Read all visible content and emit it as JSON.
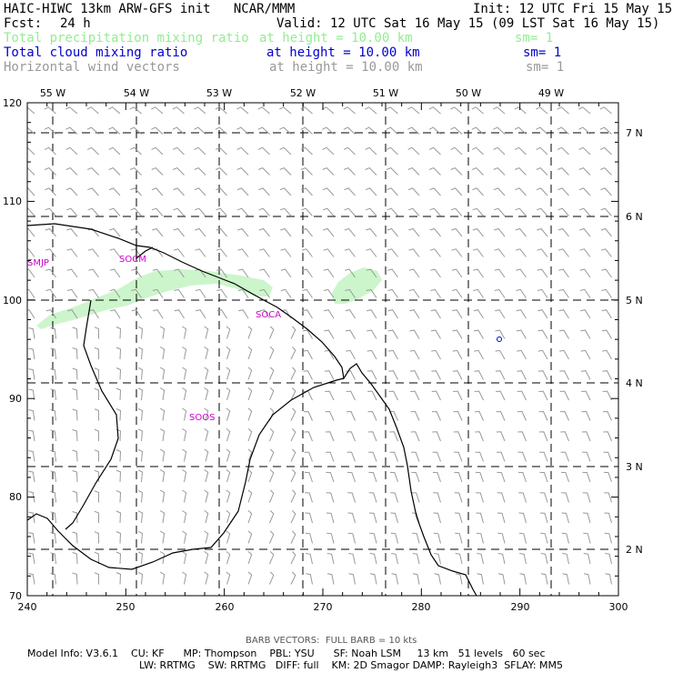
{
  "header": {
    "title_left": "HAIC-HIWC 13km ARW-GFS init   NCAR/MMM",
    "init": "Init: 12 UTC Fri 15 May 15",
    "fcst_label": "Fcst:",
    "fcst_value": "24 h",
    "valid": "Valid: 12 UTC Sat 16 May 15 (09 LST Sat 16 May 15)"
  },
  "fields": [
    {
      "name": "Total precipitation mixing ratio",
      "height": "at height = 10.00 km",
      "sm": "sm= 1",
      "color": "#90ee90"
    },
    {
      "name": "Total cloud mixing ratio",
      "height": "at height = 10.00 km",
      "sm": "sm= 1",
      "color": "#0000cc"
    },
    {
      "name": "Horizontal wind vectors",
      "height": "at height = 10.00 km",
      "sm": "sm= 1",
      "color": "#999999"
    }
  ],
  "map": {
    "x_ticks": [
      "240",
      "250",
      "260",
      "270",
      "280",
      "290",
      "300"
    ],
    "y_ticks": [
      "70",
      "80",
      "90",
      "100",
      "110",
      "120"
    ],
    "lon_labels": [
      "55 W",
      "54 W",
      "53 W",
      "52 W",
      "51 W",
      "50 W",
      "49 W"
    ],
    "lat_labels": [
      "7 N",
      "6 N",
      "5 N",
      "4 N",
      "3 N",
      "2 N"
    ],
    "stations": [
      "SMJP",
      "SOCM",
      "SOCA",
      "SOOS"
    ],
    "station_color": "#cc00cc",
    "precip_color": "#ccf5cc",
    "barb_color": "#999999"
  },
  "footer": {
    "barb_note": "BARB VECTORS:  FULL BARB = 10 kts",
    "model_line1": "Model Info: V3.6.1    CU: KF      MP: Thompson    PBL: YSU      SF: Noah LSM     13 km   51 levels   60 sec",
    "model_line2": "LW: RRTMG    SW: RRTMG   DIFF: full    KM: 2D Smagor DAMP: Rayleigh3  SFLAY: MM5"
  }
}
